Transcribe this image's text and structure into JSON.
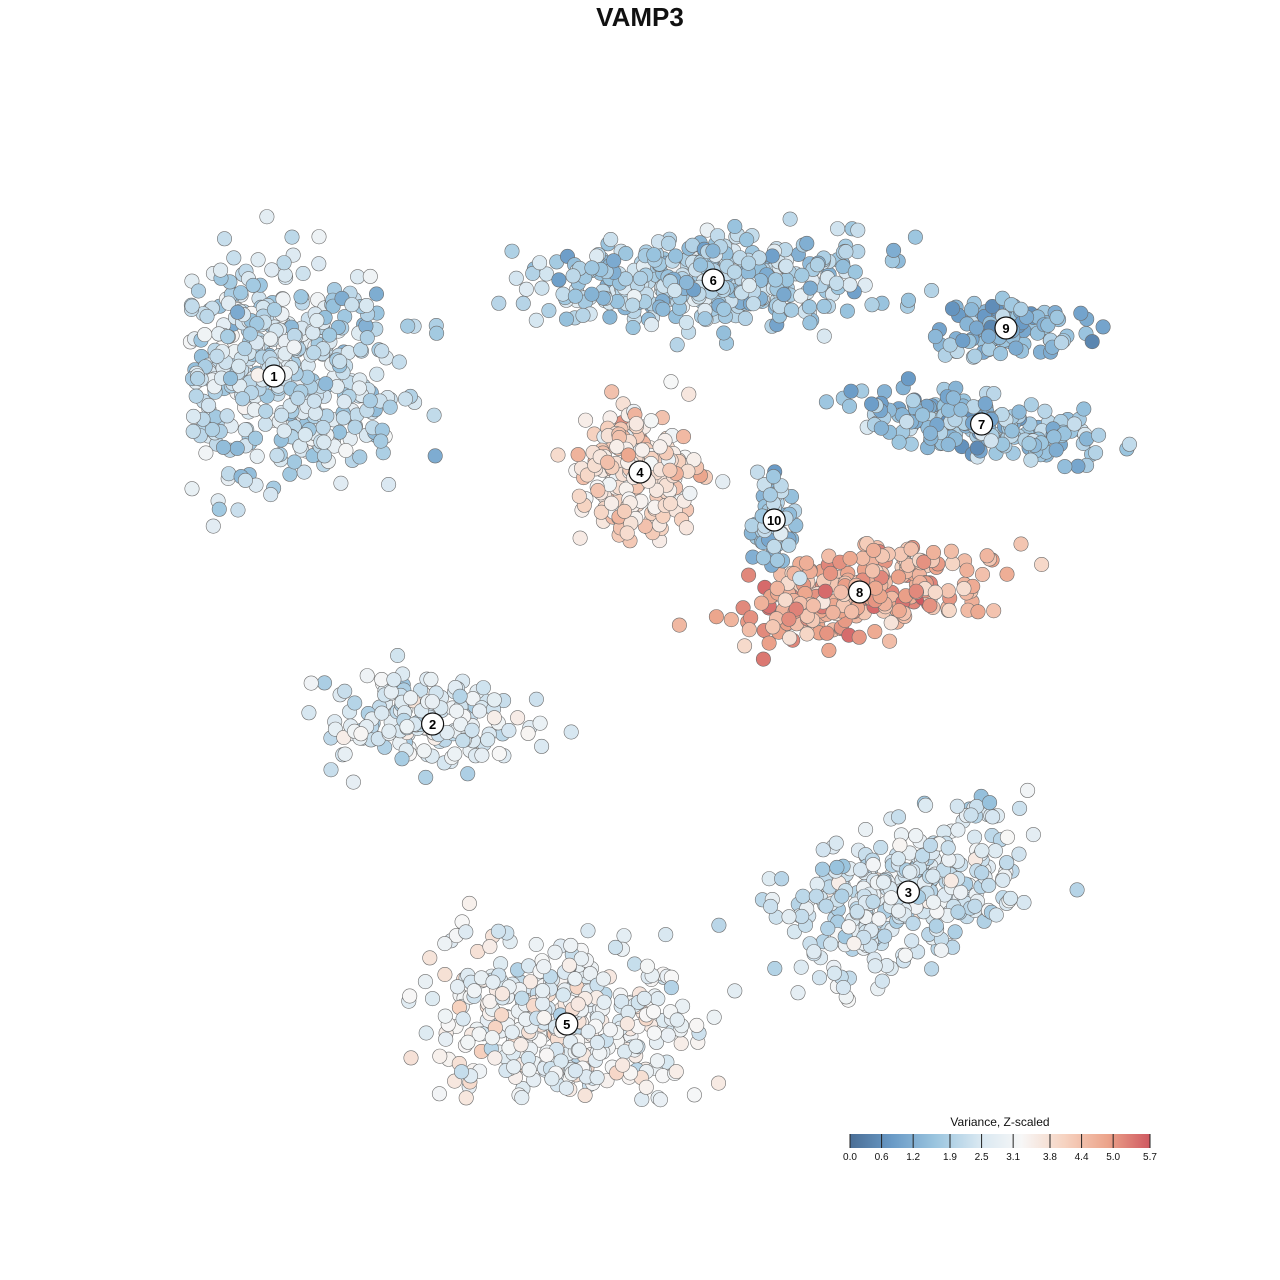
{
  "chart_data": {
    "type": "scatter",
    "title": "VAMP3",
    "description_kind": "tsne-embedding colored by scaled expression",
    "color_scale": {
      "title": "Variance, Z-scaled",
      "min": 0.0,
      "max": 5.7,
      "ticks": [
        "0.0",
        "0.6",
        "1.2",
        "1.9",
        "2.5",
        "3.1",
        "3.8",
        "4.4",
        "5.0",
        "5.7"
      ],
      "colors": [
        "#4a6e96",
        "#6a9bc7",
        "#9bc5df",
        "#d7e7f1",
        "#f7f7f7",
        "#f6d3c1",
        "#eca48b",
        "#cf5961"
      ]
    },
    "clusters": [
      {
        "label": "1",
        "x": -30,
        "y": 22,
        "mean_value": 2.3
      },
      {
        "label": "2",
        "x": -17,
        "y": -7,
        "mean_value": 2.6
      },
      {
        "label": "3",
        "x": 22,
        "y": -21,
        "mean_value": 2.5
      },
      {
        "label": "4",
        "x": 0,
        "y": 14,
        "mean_value": 3.8
      },
      {
        "label": "5",
        "x": -6,
        "y": -32,
        "mean_value": 3.0
      },
      {
        "label": "6",
        "x": 6,
        "y": 30,
        "mean_value": 1.9
      },
      {
        "label": "7",
        "x": 28,
        "y": 18,
        "mean_value": 1.6
      },
      {
        "label": "8",
        "x": 18,
        "y": 4,
        "mean_value": 4.6
      },
      {
        "label": "9",
        "x": 30,
        "y": 26,
        "mean_value": 1.3
      },
      {
        "label": "10",
        "x": 11,
        "y": 10,
        "mean_value": 1.7
      }
    ],
    "grid": false,
    "legend_position": "bottom-right"
  },
  "icons": {
    "cluster_marker": "circle-number-badge"
  }
}
